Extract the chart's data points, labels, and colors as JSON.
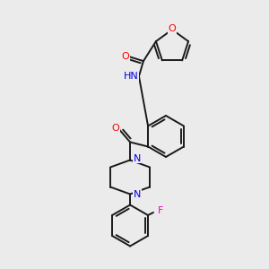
{
  "background_color": "#ebebeb",
  "bond_color": "#1a1a1a",
  "atom_colors": {
    "O": "#ff0000",
    "N": "#0000ee",
    "F": "#ee00cc",
    "H": "#008080",
    "C": "#1a1a1a"
  },
  "figsize": [
    3.0,
    3.0
  ],
  "dpi": 100,
  "lw": 1.4,
  "fontsize": 8.5
}
